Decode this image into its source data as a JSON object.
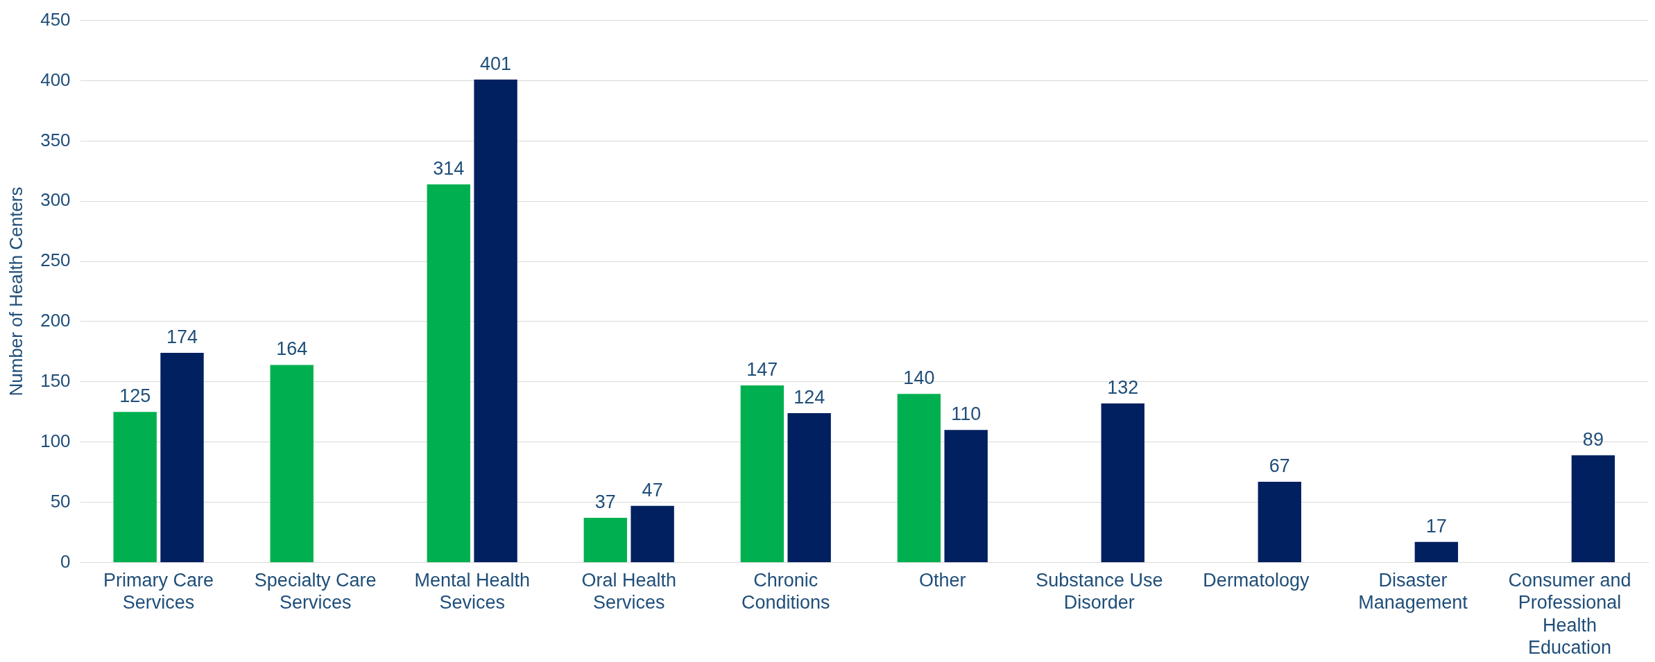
{
  "chart_data": {
    "type": "bar",
    "ylabel": "Number of Health Centers",
    "categories": [
      "Primary Care Services",
      "Specialty Care Services",
      "Mental Health Sevices",
      "Oral Health Services",
      "Chronic Conditions",
      "Other",
      "Substance Use Disorder",
      "Dermatology",
      "Disaster Management",
      "Consumer and Professional Health Education"
    ],
    "series": [
      {
        "color": "#00b050",
        "values": [
          125,
          164,
          314,
          37,
          147,
          140,
          null,
          null,
          null,
          null
        ]
      },
      {
        "color": "#002060",
        "values": [
          174,
          null,
          401,
          47,
          124,
          110,
          132,
          67,
          17,
          89
        ]
      }
    ],
    "ylim": [
      0,
      450
    ],
    "yticks": [
      0,
      50,
      100,
      150,
      200,
      250,
      300,
      350,
      400,
      450
    ],
    "grid": "y",
    "data_labels": true,
    "legend": false
  }
}
